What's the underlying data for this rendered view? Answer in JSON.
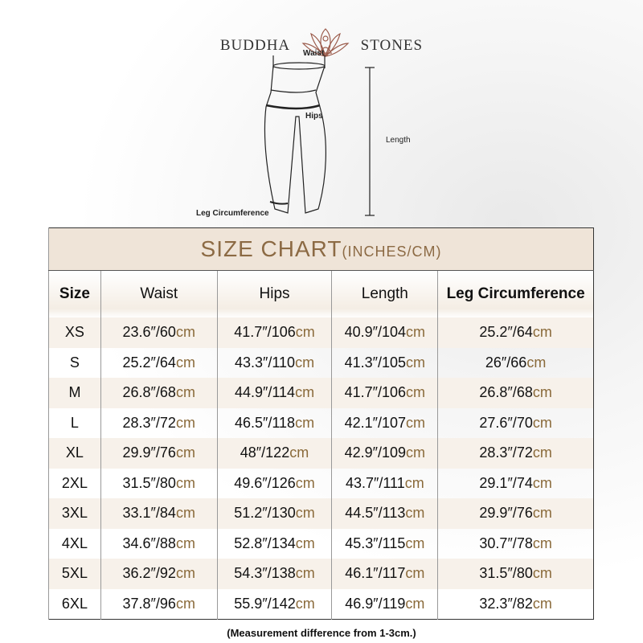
{
  "brand": {
    "left": "BUDDHA",
    "right": "STONES",
    "logo": "lotus-meditation-icon"
  },
  "diagram": {
    "waist": "Waist",
    "hips": "Hips",
    "length": "Length",
    "leg": "Leg Circumference"
  },
  "table": {
    "title": "SIZE CHART",
    "title_units": "(INCHES/CM)",
    "headers": [
      "Size",
      "Waist",
      "Hips",
      "Length",
      "Leg Circumference"
    ],
    "unit": "cm",
    "rows": [
      [
        "XS",
        "23.6″/60",
        "41.7″/106",
        "40.9″/104",
        "25.2″/64"
      ],
      [
        "S",
        "25.2″/64",
        "43.3″/110",
        "41.3″/105",
        "26″/66"
      ],
      [
        "M",
        "26.8″/68",
        "44.9″/114",
        "41.7″/106",
        "26.8″/68"
      ],
      [
        "L",
        "28.3″/72",
        "46.5″/118",
        "42.1″/107",
        "27.6″/70"
      ],
      [
        "XL",
        "29.9″/76",
        "48″/122",
        "42.9″/109",
        "28.3″/72"
      ],
      [
        "2XL",
        "31.5″/80",
        "49.6″/126",
        "43.7″/111",
        "29.1″/74"
      ],
      [
        "3XL",
        "33.1″/84",
        "51.2″/130",
        "44.5″/113",
        "29.9″/76"
      ],
      [
        "4XL",
        "34.6″/88",
        "52.8″/134",
        "45.3″/115",
        "30.7″/78"
      ],
      [
        "5XL",
        "36.2″/92",
        "54.3″/138",
        "46.1″/117",
        "31.5″/80"
      ],
      [
        "6XL",
        "37.8″/96",
        "55.9″/142",
        "46.9″/119",
        "32.3″/82"
      ]
    ]
  },
  "note": "(Measurement difference from 1-3cm.)",
  "colors": {
    "accent": "#8c6a44",
    "title_bg": "#efe4d8"
  }
}
